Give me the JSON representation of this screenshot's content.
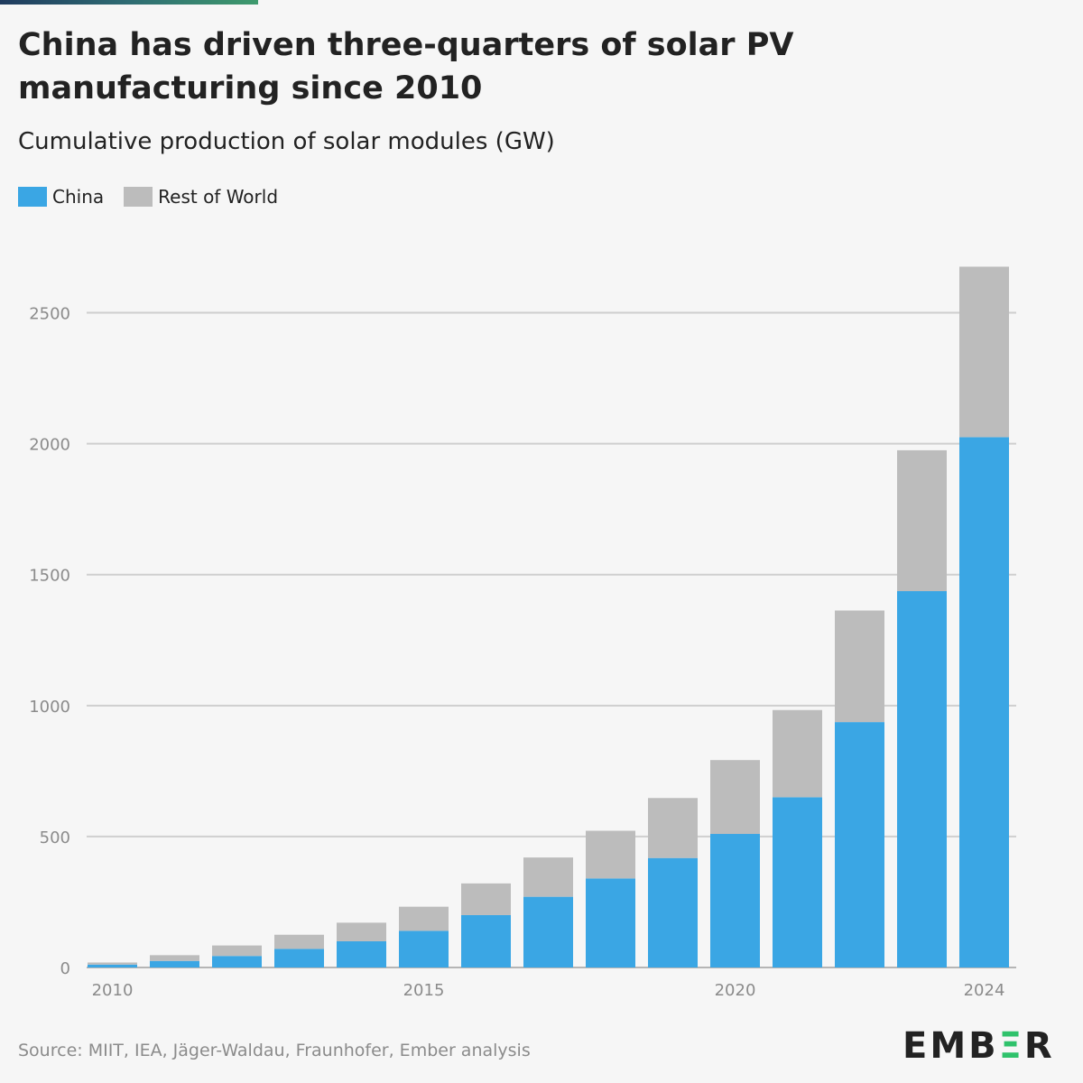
{
  "header": {
    "title": "China has driven three-quarters of solar PV manufacturing since 2010",
    "subtitle": "Cumulative production of solar modules (GW)"
  },
  "footer": {
    "source": "Source: MIIT, IEA, Jäger-Waldau, Fraunhofer, Ember analysis",
    "logo_text_before": "EMB",
    "logo_mark": "Ξ",
    "logo_text_after": "R"
  },
  "colors": {
    "china": "#3aa6e4",
    "rest_of_world": "#bcbcbc",
    "gridline": "#cfcfcf",
    "brand_green": "#2fc26b"
  },
  "chart_data": {
    "type": "bar",
    "stacked": true,
    "title": "China has driven three-quarters of solar PV manufacturing since 2010",
    "subtitle": "Cumulative production of solar modules (GW)",
    "xlabel": "",
    "ylabel": "",
    "categories": [
      2010,
      2011,
      2012,
      2013,
      2014,
      2015,
      2016,
      2017,
      2018,
      2019,
      2020,
      2021,
      2022,
      2023,
      2024
    ],
    "x_ticks": [
      2010,
      2015,
      2020,
      2024
    ],
    "ylim": [
      0,
      2750
    ],
    "y_ticks": [
      0,
      500,
      1000,
      1500,
      2000,
      2500
    ],
    "grid": true,
    "legend_position": "top-left",
    "series": [
      {
        "name": "China",
        "color": "#3aa6e4",
        "values": [
          11,
          25,
          44,
          71,
          100,
          140,
          200,
          270,
          340,
          418,
          510,
          650,
          937,
          1437,
          2025
        ]
      },
      {
        "name": "Rest of World",
        "color": "#bcbcbc",
        "values": [
          8,
          22,
          40,
          54,
          71,
          92,
          121,
          150,
          182,
          229,
          282,
          333,
          426,
          538,
          651
        ]
      }
    ]
  }
}
